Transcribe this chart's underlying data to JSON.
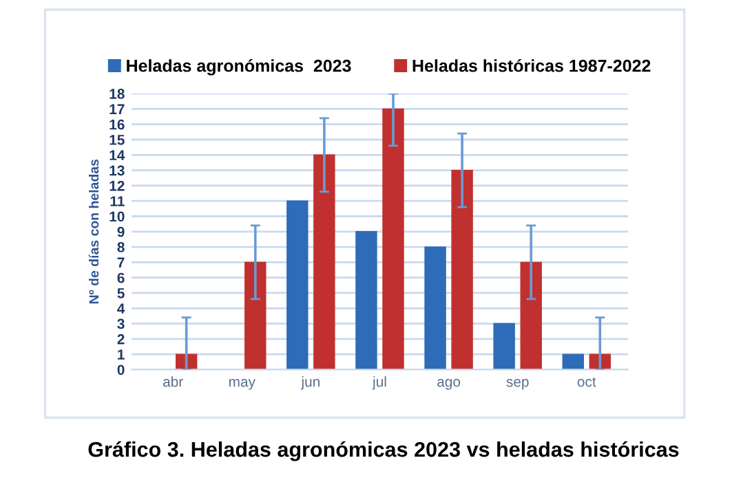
{
  "chart_data": {
    "type": "bar",
    "title": "Gráfico 3. Heladas agronómicas 2023 vs heladas históricas",
    "ylabel": "Nº de días con heladas",
    "categories": [
      "abr",
      "may",
      "jun",
      "jul",
      "ago",
      "sep",
      "oct"
    ],
    "series": [
      {
        "name": "Heladas agronómicas  2023",
        "color": "#2e6bb8",
        "values": [
          null,
          null,
          11,
          9,
          8,
          3,
          1
        ]
      },
      {
        "name": "Heladas históricas 1987-2022",
        "color": "#c0302f",
        "values": [
          1,
          7,
          14,
          17,
          13,
          7,
          1
        ],
        "errors": [
          [
            0,
            3.4
          ],
          [
            4.6,
            9.4
          ],
          [
            11.6,
            16.4
          ],
          [
            14.6,
            18
          ],
          [
            10.6,
            15.4
          ],
          [
            4.6,
            9.4
          ],
          [
            0,
            3.4
          ]
        ]
      }
    ],
    "ylim": [
      0,
      18
    ],
    "yticks": [
      0,
      1,
      2,
      3,
      4,
      5,
      6,
      7,
      8,
      9,
      10,
      11,
      12,
      13,
      14,
      15,
      16,
      17,
      18
    ],
    "grid": "y",
    "legend": "top"
  }
}
